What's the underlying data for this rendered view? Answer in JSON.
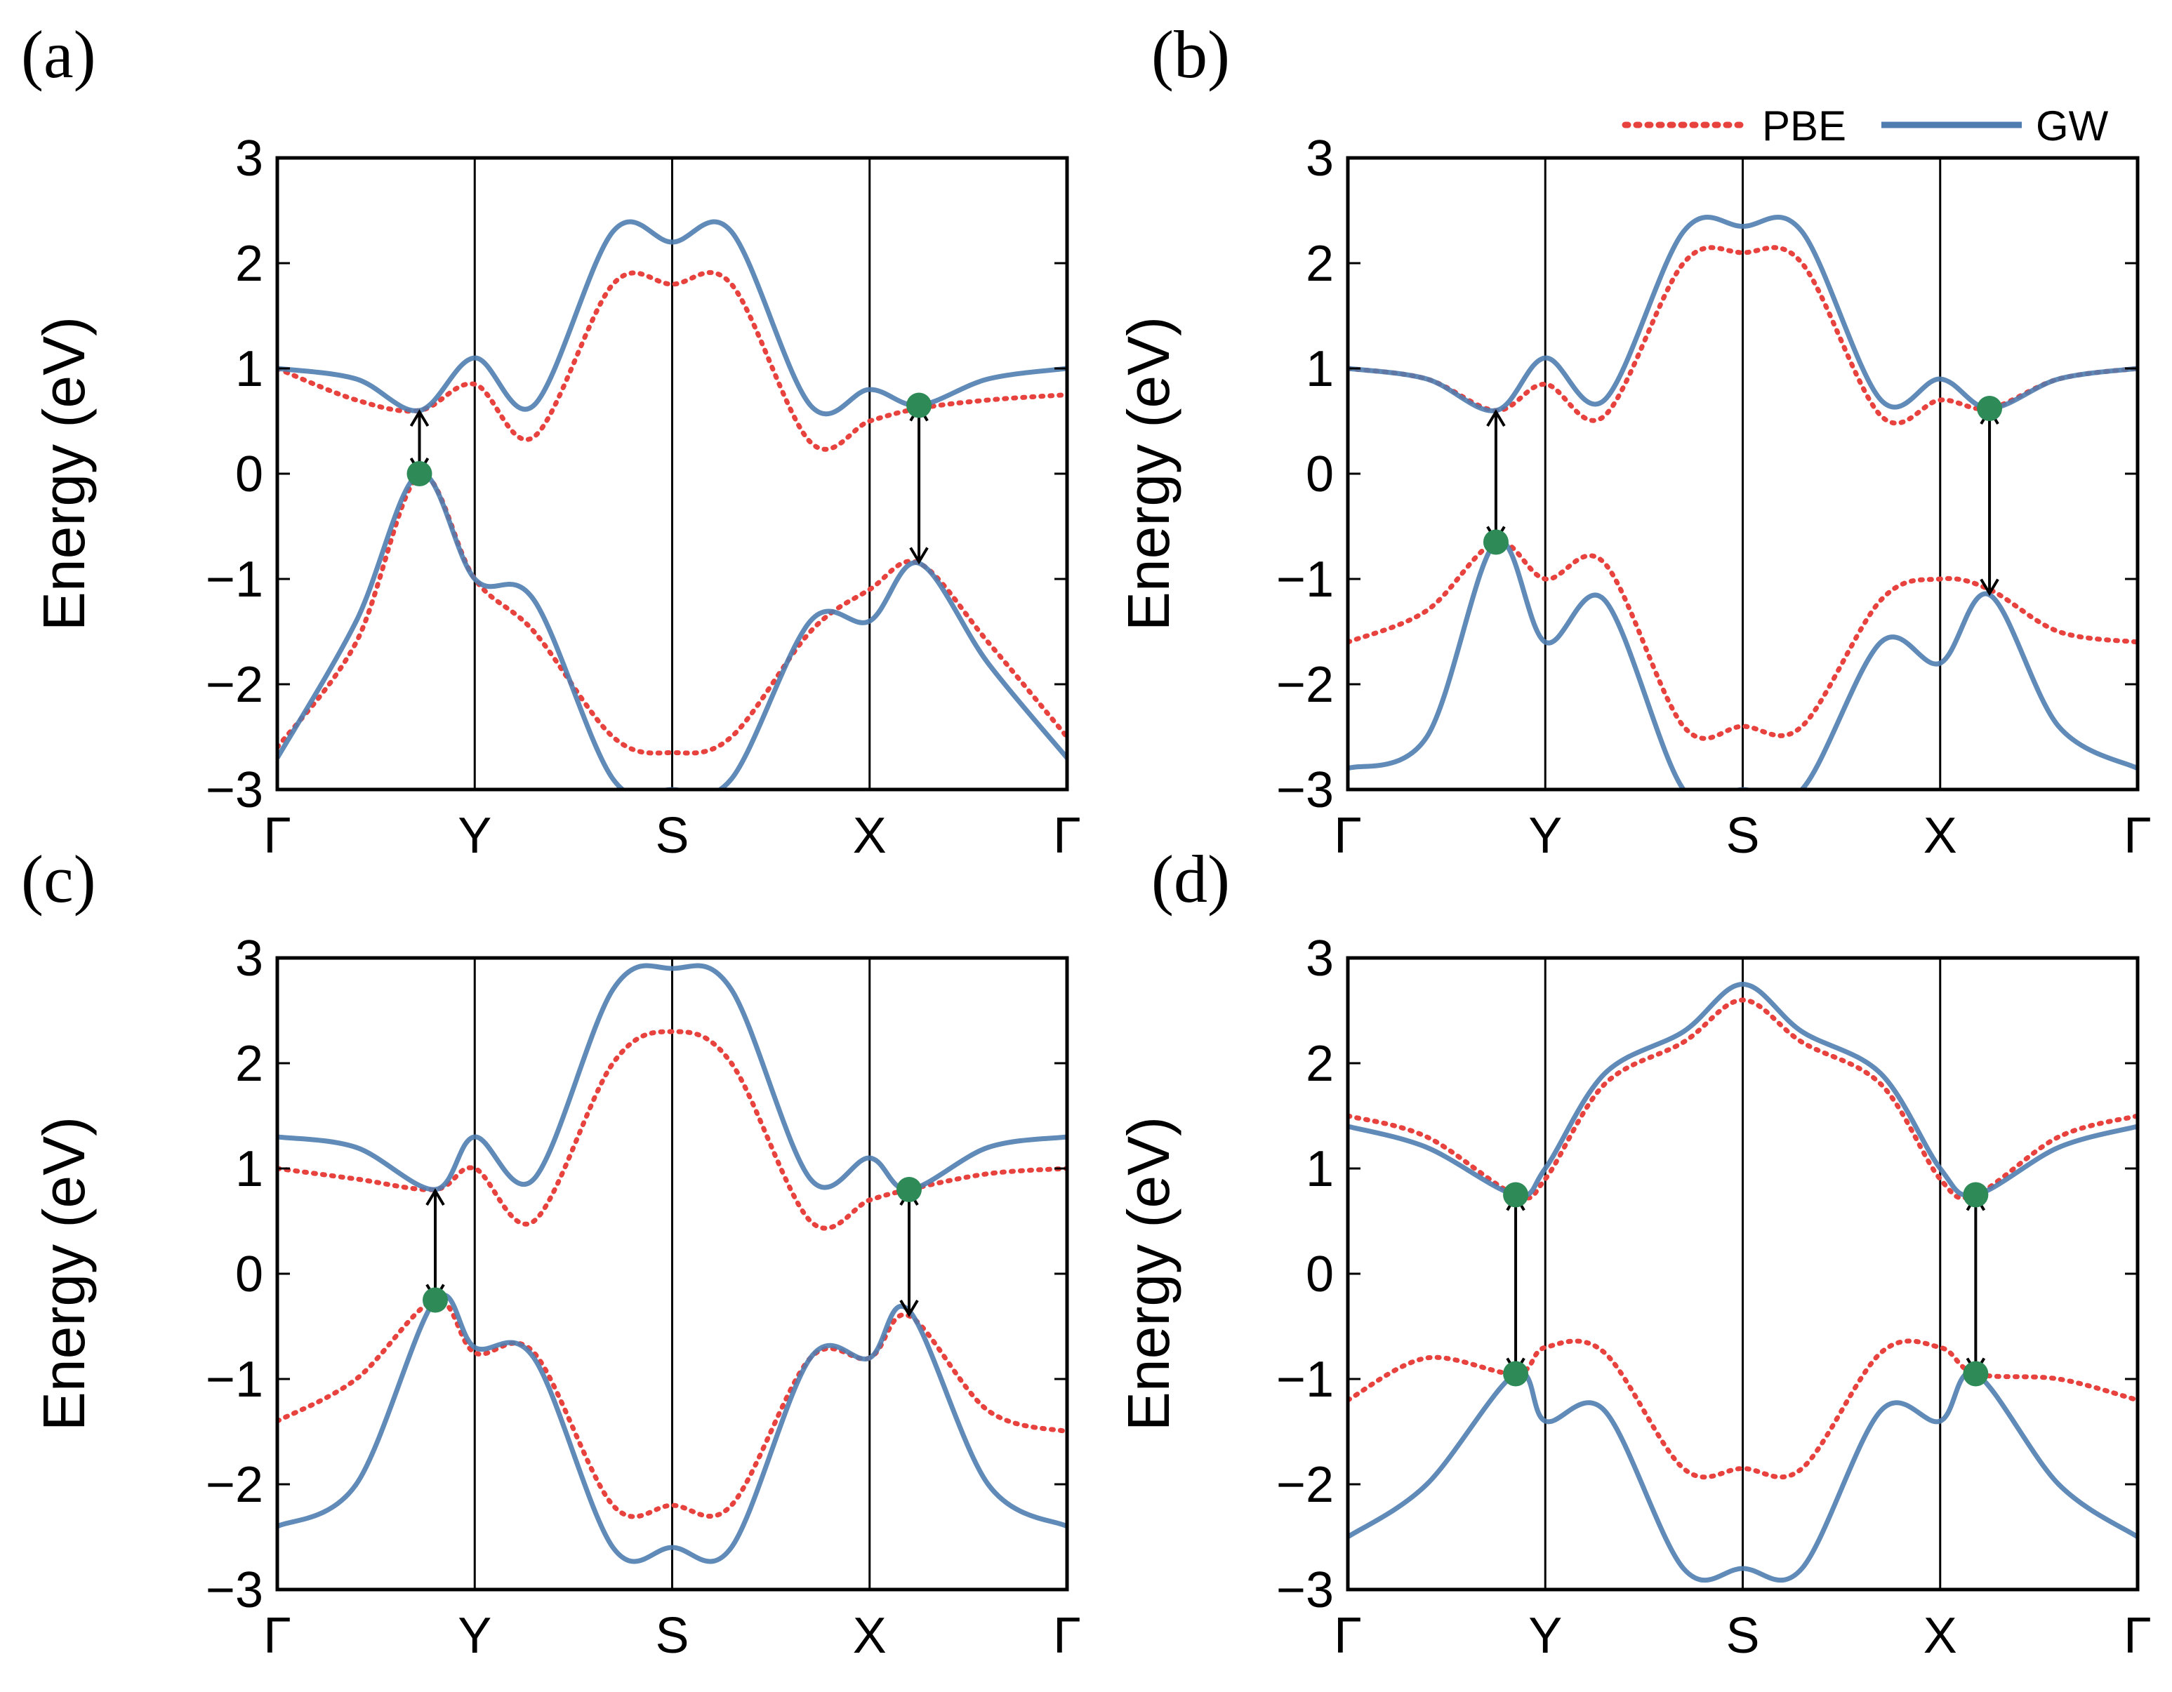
{
  "chart_data": [
    {
      "panel": "(a)",
      "type": "line",
      "title": "",
      "xlabel": "",
      "ylabel": "Energy (eV)",
      "ylim": [
        -3,
        3
      ],
      "yticks": [
        "3",
        "2",
        "1",
        "0",
        "−1",
        "−2",
        "−3"
      ],
      "x_kpoints": [
        "Γ",
        "Y",
        "S",
        "X",
        "Γ"
      ],
      "x_kpoint_positions": [
        0,
        1,
        2,
        3,
        4
      ],
      "series": [
        {
          "name": "PBE",
          "style": "dotted",
          "color": "#e8423f",
          "bands": [
            {
              "x": [
                0,
                0.4,
                0.72,
                1.0,
                1.3,
                1.7,
                2.0,
                2.3,
                2.7,
                3.0,
                3.25,
                3.6,
                4.0
              ],
              "y": [
                -2.6,
                -1.6,
                -0.02,
                -1.0,
                -1.5,
                -2.5,
                -2.65,
                -2.5,
                -1.5,
                -1.1,
                -0.85,
                -1.6,
                -2.5
              ]
            },
            {
              "x": [
                0,
                0.4,
                0.72,
                1.0,
                1.3,
                1.7,
                2.0,
                2.3,
                2.7,
                3.0,
                3.25,
                3.6,
                4.0
              ],
              "y": [
                1.0,
                0.7,
                0.6,
                0.85,
                0.35,
                1.8,
                1.8,
                1.8,
                0.3,
                0.5,
                0.62,
                0.7,
                0.75
              ]
            }
          ]
        },
        {
          "name": "GW",
          "style": "solid",
          "color": "#4f7db0",
          "bands": [
            {
              "x": [
                0,
                0.4,
                0.72,
                1.0,
                1.3,
                1.7,
                2.0,
                2.3,
                2.7,
                3.0,
                3.25,
                3.6,
                4.0
              ],
              "y": [
                -2.7,
                -1.4,
                0.0,
                -1.0,
                -1.2,
                -2.9,
                -3.0,
                -2.9,
                -1.4,
                -1.4,
                -0.85,
                -1.8,
                -2.7
              ]
            },
            {
              "x": [
                0,
                0.4,
                0.72,
                1.0,
                1.3,
                1.7,
                2.0,
                2.3,
                2.7,
                3.0,
                3.25,
                3.6,
                4.0
              ],
              "y": [
                1.0,
                0.9,
                0.6,
                1.1,
                0.65,
                2.3,
                2.2,
                2.3,
                0.65,
                0.8,
                0.65,
                0.9,
                1.0
              ]
            }
          ]
        }
      ],
      "markers": [
        {
          "x": 0.72,
          "y": 0.0
        },
        {
          "x": 3.25,
          "y": 0.65
        }
      ],
      "arrows": [
        {
          "x": 0.72,
          "y1": 0.0,
          "y2": 0.6
        },
        {
          "x": 3.25,
          "y1": -0.85,
          "y2": 0.65
        }
      ]
    },
    {
      "panel": "(b)",
      "type": "line",
      "title": "",
      "xlabel": "",
      "ylabel": "Energy (eV)",
      "ylim": [
        -3,
        3
      ],
      "yticks": [
        "3",
        "2",
        "1",
        "0",
        "−1",
        "−2",
        "−3"
      ],
      "x_kpoints": [
        "Γ",
        "Y",
        "S",
        "X",
        "Γ"
      ],
      "x_kpoint_positions": [
        0,
        1,
        2,
        3,
        4
      ],
      "series": [
        {
          "name": "PBE",
          "style": "dotted",
          "color": "#e8423f",
          "bands": [
            {
              "x": [
                0,
                0.4,
                0.75,
                1.0,
                1.3,
                1.7,
                2.0,
                2.3,
                2.7,
                3.0,
                3.25,
                3.6,
                4.0
              ],
              "y": [
                -1.6,
                -1.3,
                -0.65,
                -1.0,
                -0.85,
                -2.4,
                -2.4,
                -2.4,
                -1.2,
                -1.0,
                -1.1,
                -1.5,
                -1.6
              ]
            },
            {
              "x": [
                0,
                0.4,
                0.75,
                1.0,
                1.3,
                1.7,
                2.0,
                2.3,
                2.7,
                3.0,
                3.25,
                3.6,
                4.0
              ],
              "y": [
                1.0,
                0.9,
                0.6,
                0.85,
                0.55,
                2.0,
                2.1,
                2.0,
                0.55,
                0.7,
                0.62,
                0.9,
                1.0
              ]
            }
          ]
        },
        {
          "name": "GW",
          "style": "solid",
          "color": "#4f7db0",
          "bands": [
            {
              "x": [
                0,
                0.4,
                0.75,
                1.0,
                1.3,
                1.7,
                2.0,
                2.3,
                2.7,
                3.0,
                3.25,
                3.6,
                4.0
              ],
              "y": [
                -2.8,
                -2.5,
                -0.65,
                -1.6,
                -1.2,
                -3.0,
                -3.0,
                -3.0,
                -1.6,
                -1.8,
                -1.15,
                -2.4,
                -2.8
              ]
            },
            {
              "x": [
                0,
                0.4,
                0.75,
                1.0,
                1.3,
                1.7,
                2.0,
                2.3,
                2.7,
                3.0,
                3.25,
                3.6,
                4.0
              ],
              "y": [
                1.0,
                0.9,
                0.6,
                1.1,
                0.7,
                2.3,
                2.35,
                2.3,
                0.7,
                0.9,
                0.62,
                0.9,
                1.0
              ]
            }
          ]
        }
      ],
      "markers": [
        {
          "x": 0.75,
          "y": -0.65
        },
        {
          "x": 3.25,
          "y": 0.62
        }
      ],
      "arrows": [
        {
          "x": 0.75,
          "y1": -0.65,
          "y2": 0.6
        },
        {
          "x": 3.25,
          "y1": -1.15,
          "y2": 0.62
        }
      ],
      "legend": {
        "position": "top-right",
        "entries": [
          "PBE",
          "GW"
        ]
      }
    },
    {
      "panel": "(c)",
      "type": "line",
      "title": "",
      "xlabel": "",
      "ylabel": "Energy (eV)",
      "ylim": [
        -3,
        3
      ],
      "yticks": [
        "3",
        "2",
        "1",
        "0",
        "−1",
        "−2",
        "−3"
      ],
      "x_kpoints": [
        "Γ",
        "Y",
        "S",
        "X",
        "Γ"
      ],
      "x_kpoint_positions": [
        0,
        1,
        2,
        3,
        4
      ],
      "series": [
        {
          "name": "PBE",
          "style": "dotted",
          "color": "#e8423f",
          "bands": [
            {
              "x": [
                0,
                0.4,
                0.8,
                1.0,
                1.3,
                1.7,
                2.0,
                2.3,
                2.7,
                3.0,
                3.2,
                3.6,
                4.0
              ],
              "y": [
                -1.4,
                -1.0,
                -0.25,
                -0.75,
                -0.75,
                -2.2,
                -2.2,
                -2.2,
                -0.8,
                -0.8,
                -0.4,
                -1.3,
                -1.5
              ]
            },
            {
              "x": [
                0,
                0.4,
                0.8,
                1.0,
                1.3,
                1.7,
                2.0,
                2.3,
                2.7,
                3.0,
                3.2,
                3.6,
                4.0
              ],
              "y": [
                1.0,
                0.9,
                0.8,
                1.0,
                0.5,
                2.0,
                2.3,
                2.0,
                0.5,
                0.7,
                0.8,
                0.95,
                1.0
              ]
            }
          ]
        },
        {
          "name": "GW",
          "style": "solid",
          "color": "#4f7db0",
          "bands": [
            {
              "x": [
                0,
                0.4,
                0.8,
                1.0,
                1.3,
                1.7,
                2.0,
                2.3,
                2.7,
                3.0,
                3.2,
                3.6,
                4.0
              ],
              "y": [
                -2.4,
                -2.0,
                -0.25,
                -0.7,
                -0.8,
                -2.6,
                -2.6,
                -2.6,
                -0.8,
                -0.8,
                -0.35,
                -2.0,
                -2.4
              ]
            },
            {
              "x": [
                0,
                0.4,
                0.8,
                1.0,
                1.3,
                1.7,
                2.0,
                2.3,
                2.7,
                3.0,
                3.2,
                3.6,
                4.0
              ],
              "y": [
                1.3,
                1.2,
                0.8,
                1.3,
                0.9,
                2.7,
                2.9,
                2.7,
                0.9,
                1.1,
                0.8,
                1.2,
                1.3
              ]
            }
          ]
        }
      ],
      "markers": [
        {
          "x": 0.8,
          "y": -0.25
        },
        {
          "x": 3.2,
          "y": 0.8
        }
      ],
      "arrows": [
        {
          "x": 0.8,
          "y1": -0.25,
          "y2": 0.8
        },
        {
          "x": 3.2,
          "y1": -0.4,
          "y2": 0.8
        }
      ]
    },
    {
      "panel": "(d)",
      "type": "line",
      "title": "",
      "xlabel": "",
      "ylabel": "Energy (eV)",
      "ylim": [
        -3,
        3
      ],
      "yticks": [
        "3",
        "2",
        "1",
        "0",
        "−1",
        "−2",
        "−3"
      ],
      "x_kpoints": [
        "Γ",
        "Y",
        "S",
        "X",
        "Γ"
      ],
      "x_kpoint_positions": [
        0,
        1,
        2,
        3,
        4
      ],
      "series": [
        {
          "name": "PBE",
          "style": "dotted",
          "color": "#e8423f",
          "bands": [
            {
              "x": [
                0,
                0.4,
                0.85,
                1.0,
                1.3,
                1.7,
                2.0,
                2.3,
                2.7,
                3.0,
                3.18,
                3.6,
                4.0
              ],
              "y": [
                -1.2,
                -0.8,
                -0.95,
                -0.7,
                -0.75,
                -1.85,
                -1.85,
                -1.85,
                -0.75,
                -0.7,
                -0.95,
                -1.0,
                -1.2
              ]
            },
            {
              "x": [
                0,
                0.4,
                0.85,
                1.0,
                1.3,
                1.7,
                2.0,
                2.3,
                2.7,
                3.0,
                3.18,
                3.6,
                4.0
              ],
              "y": [
                1.5,
                1.3,
                0.75,
                0.9,
                1.8,
                2.2,
                2.6,
                2.2,
                1.8,
                0.9,
                0.75,
                1.3,
                1.5
              ]
            }
          ]
        },
        {
          "name": "GW",
          "style": "solid",
          "color": "#4f7db0",
          "bands": [
            {
              "x": [
                0,
                0.4,
                0.85,
                1.0,
                1.3,
                1.7,
                2.0,
                2.3,
                2.7,
                3.0,
                3.18,
                3.6,
                4.0
              ],
              "y": [
                -2.5,
                -2.0,
                -0.95,
                -1.4,
                -1.3,
                -2.8,
                -2.8,
                -2.8,
                -1.3,
                -1.4,
                -0.95,
                -2.0,
                -2.5
              ]
            },
            {
              "x": [
                0,
                0.4,
                0.85,
                1.0,
                1.3,
                1.7,
                2.0,
                2.3,
                2.7,
                3.0,
                3.18,
                3.6,
                4.0
              ],
              "y": [
                1.4,
                1.2,
                0.75,
                1.0,
                1.9,
                2.3,
                2.75,
                2.3,
                1.9,
                1.0,
                0.75,
                1.2,
                1.4
              ]
            }
          ]
        }
      ],
      "markers": [
        {
          "x": 0.85,
          "y": -0.95
        },
        {
          "x": 0.85,
          "y": 0.75
        },
        {
          "x": 3.18,
          "y": -0.95
        },
        {
          "x": 3.18,
          "y": 0.75
        }
      ],
      "arrows": [
        {
          "x": 0.85,
          "y1": -0.95,
          "y2": 0.75
        },
        {
          "x": 3.18,
          "y1": -0.95,
          "y2": 0.75
        }
      ]
    }
  ],
  "legend": {
    "pbe_label": "PBE",
    "gw_label": "GW"
  },
  "colors": {
    "pbe": "#e8423f",
    "gw": "#4f7db0",
    "marker": "#2e8b57",
    "axis": "#000000"
  }
}
